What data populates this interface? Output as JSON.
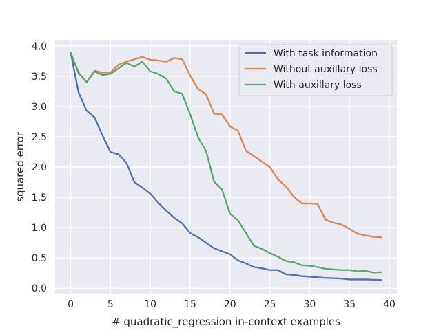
{
  "chart_data": {
    "type": "line",
    "title": "",
    "xlabel": "# quadratic_regression in-context examples",
    "ylabel": "squared error",
    "xlim": [
      -1.95,
      40.95
    ],
    "ylim": [
      -0.1,
      4.1
    ],
    "xticks": [
      0,
      5,
      10,
      15,
      20,
      25,
      30,
      35,
      40
    ],
    "yticks": [
      0.0,
      0.5,
      1.0,
      1.5,
      2.0,
      2.5,
      3.0,
      3.5,
      4.0
    ],
    "xtick_labels": [
      "0",
      "5",
      "10",
      "15",
      "20",
      "25",
      "30",
      "35",
      "40"
    ],
    "ytick_labels": [
      "0.0",
      "0.5",
      "1.0",
      "1.5",
      "2.0",
      "2.5",
      "3.0",
      "3.5",
      "4.0"
    ],
    "grid": true,
    "legend_position": "top-right",
    "x": [
      0,
      1,
      2,
      3,
      4,
      5,
      6,
      7,
      8,
      9,
      10,
      11,
      12,
      13,
      14,
      15,
      16,
      17,
      18,
      19,
      20,
      21,
      22,
      23,
      24,
      25,
      26,
      27,
      28,
      29,
      30,
      31,
      32,
      33,
      34,
      35,
      36,
      37,
      38,
      39
    ],
    "series": [
      {
        "name": "With task information",
        "color": "#4c72b0",
        "values": [
          3.89,
          3.23,
          2.93,
          2.82,
          2.52,
          2.25,
          2.21,
          2.07,
          1.75,
          1.66,
          1.56,
          1.41,
          1.28,
          1.16,
          1.07,
          0.91,
          0.84,
          0.75,
          0.66,
          0.61,
          0.56,
          0.46,
          0.41,
          0.35,
          0.33,
          0.3,
          0.3,
          0.23,
          0.22,
          0.2,
          0.19,
          0.18,
          0.17,
          0.165,
          0.16,
          0.145,
          0.145,
          0.145,
          0.14,
          0.135
        ]
      },
      {
        "name": "Without auxillary loss",
        "color": "#dd8452",
        "values": [
          3.89,
          3.56,
          3.4,
          3.59,
          3.56,
          3.56,
          3.69,
          3.74,
          3.78,
          3.82,
          3.77,
          3.76,
          3.74,
          3.8,
          3.78,
          3.51,
          3.29,
          3.2,
          2.88,
          2.87,
          2.67,
          2.6,
          2.27,
          2.18,
          2.09,
          2.0,
          1.8,
          1.68,
          1.51,
          1.4,
          1.4,
          1.39,
          1.13,
          1.08,
          1.05,
          0.98,
          0.9,
          0.87,
          0.85,
          0.84
        ]
      },
      {
        "name": "With auxillary loss",
        "color": "#55a868",
        "values": [
          3.89,
          3.55,
          3.4,
          3.58,
          3.52,
          3.54,
          3.63,
          3.72,
          3.66,
          3.74,
          3.58,
          3.54,
          3.46,
          3.25,
          3.21,
          2.87,
          2.49,
          2.26,
          1.76,
          1.63,
          1.23,
          1.12,
          0.91,
          0.7,
          0.65,
          0.58,
          0.52,
          0.45,
          0.43,
          0.38,
          0.37,
          0.35,
          0.32,
          0.31,
          0.3,
          0.3,
          0.28,
          0.285,
          0.26,
          0.265
        ]
      }
    ]
  }
}
